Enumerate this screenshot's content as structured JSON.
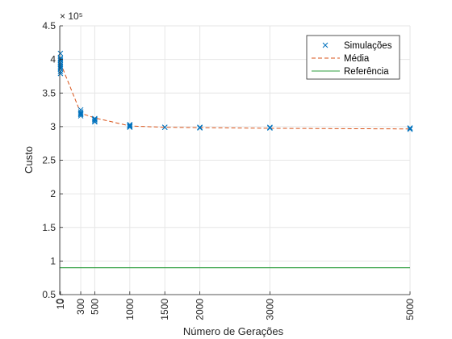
{
  "chart_data": {
    "type": "line",
    "xlabel": "Número de Gerações",
    "ylabel": "Custo",
    "exponent_label": "× 10⁵",
    "xlim": [
      0,
      5000
    ],
    "ylim": [
      0.5,
      4.5
    ],
    "x_ticks": [
      0,
      10,
      300,
      500,
      1000,
      1500,
      2000,
      3000,
      5000
    ],
    "x_tick_labels": [
      "0",
      "10",
      "300",
      "500",
      "1000",
      "1500",
      "2000",
      "3000",
      "5000"
    ],
    "y_ticks": [
      0.5,
      1,
      1.5,
      2,
      2.5,
      3,
      3.5,
      4,
      4.5
    ],
    "y_tick_labels": [
      "0.5",
      "1",
      "1.5",
      "2",
      "2.5",
      "3",
      "3.5",
      "4",
      "4.5"
    ],
    "grid": true,
    "legend_position": "top-right",
    "colors": {
      "simulations": "#0072BD",
      "mean": "#D95319",
      "reference": "#2E9E3E",
      "grid": "#e6e6e6",
      "axis": "#262626"
    },
    "series": [
      {
        "name": "Simulações",
        "kind": "scatter",
        "marker": "x",
        "points": [
          [
            10,
            4.09
          ],
          [
            10,
            4.02
          ],
          [
            10,
            3.98
          ],
          [
            10,
            3.95
          ],
          [
            10,
            3.92
          ],
          [
            10,
            3.9
          ],
          [
            10,
            3.86
          ],
          [
            10,
            3.82
          ],
          [
            10,
            3.79
          ],
          [
            10,
            4.0
          ],
          [
            10,
            3.88
          ],
          [
            300,
            3.25
          ],
          [
            300,
            3.22
          ],
          [
            300,
            3.2
          ],
          [
            300,
            3.18
          ],
          [
            300,
            3.16
          ],
          [
            300,
            3.19
          ],
          [
            500,
            3.12
          ],
          [
            500,
            3.1
          ],
          [
            500,
            3.08
          ],
          [
            500,
            3.07
          ],
          [
            500,
            3.11
          ],
          [
            1000,
            3.03
          ],
          [
            1000,
            3.02
          ],
          [
            1000,
            3.0
          ],
          [
            1000,
            3.01
          ],
          [
            1000,
            2.99
          ],
          [
            1500,
            2.99
          ],
          [
            1500,
            2.99
          ],
          [
            2000,
            2.99
          ],
          [
            2000,
            2.98
          ],
          [
            2000,
            2.99
          ],
          [
            3000,
            2.98
          ],
          [
            3000,
            2.99
          ],
          [
            3000,
            2.98
          ],
          [
            5000,
            2.97
          ],
          [
            5000,
            2.98
          ],
          [
            5000,
            2.96
          ]
        ]
      },
      {
        "name": "Média",
        "kind": "line",
        "style": "dashed",
        "points": [
          [
            10,
            3.95
          ],
          [
            300,
            3.2
          ],
          [
            500,
            3.13
          ],
          [
            1000,
            3.01
          ],
          [
            1500,
            2.99
          ],
          [
            2000,
            2.985
          ],
          [
            3000,
            2.975
          ],
          [
            5000,
            2.965
          ]
        ]
      },
      {
        "name": "Referência",
        "kind": "line",
        "style": "solid",
        "points": [
          [
            0,
            0.9
          ],
          [
            5000,
            0.9
          ]
        ]
      }
    ]
  }
}
